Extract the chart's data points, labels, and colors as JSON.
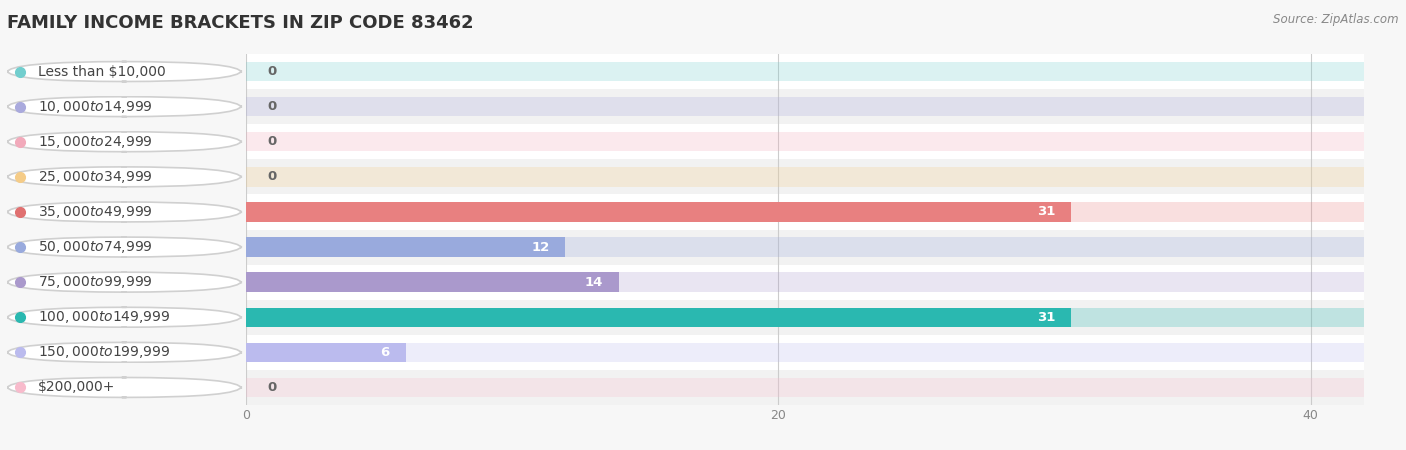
{
  "title": "FAMILY INCOME BRACKETS IN ZIP CODE 83462",
  "source_text": "Source: ZipAtlas.com",
  "categories": [
    "Less than $10,000",
    "$10,000 to $14,999",
    "$15,000 to $24,999",
    "$25,000 to $34,999",
    "$35,000 to $49,999",
    "$50,000 to $74,999",
    "$75,000 to $99,999",
    "$100,000 to $149,999",
    "$150,000 to $199,999",
    "$200,000+"
  ],
  "values": [
    0,
    0,
    0,
    0,
    31,
    12,
    14,
    31,
    6,
    0
  ],
  "bar_colors": [
    "#72cece",
    "#aaaadd",
    "#f2aabb",
    "#f5cc88",
    "#e88080",
    "#99aadd",
    "#aa99cc",
    "#2ab8b0",
    "#bbbbee",
    "#f8bbcc"
  ],
  "dot_colors": [
    "#72cece",
    "#aaaadd",
    "#f2aabb",
    "#f5cc88",
    "#e07070",
    "#99aadd",
    "#aa99cc",
    "#2ab8b0",
    "#bbbbee",
    "#f8bbcc"
  ],
  "background_color": "#f7f7f7",
  "row_colors": [
    "#ffffff",
    "#f2f2f2"
  ],
  "bar_bg_color": "#e0e0e0",
  "xlim": [
    0,
    42
  ],
  "xticks": [
    0,
    20,
    40
  ],
  "title_fontsize": 13,
  "label_fontsize": 10,
  "value_fontsize": 9.5,
  "bar_height": 0.55
}
